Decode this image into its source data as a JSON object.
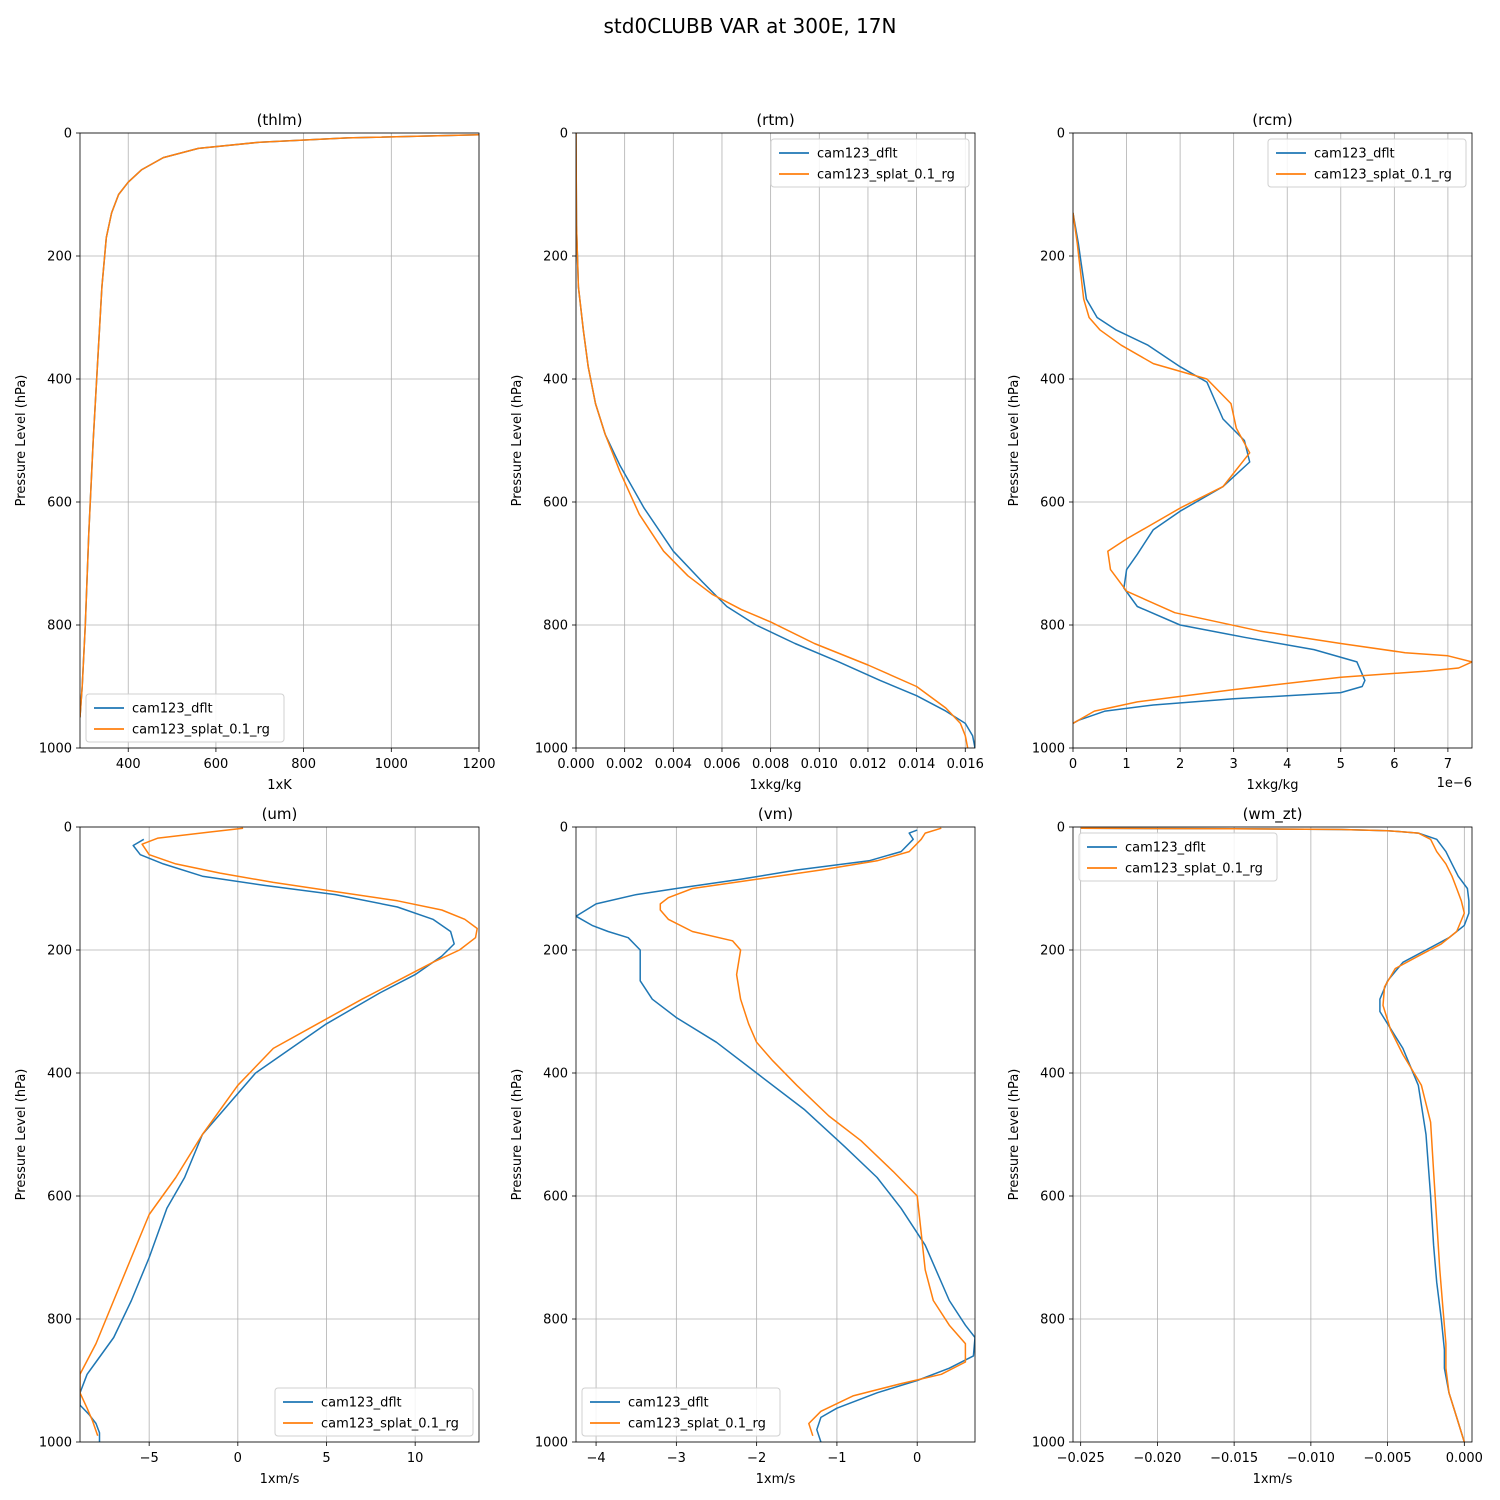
{
  "figure": {
    "title": "std0CLUBB VAR at 300E, 17N",
    "colors": {
      "cam123_dflt": "#1f77b4",
      "cam123_splat_0.1_rg": "#ff7f0e",
      "grid": "#b0b0b0"
    }
  },
  "chart_data": [
    {
      "type": "line",
      "title": "(thlm)",
      "xlabel": "1xK",
      "ylabel": "Pressure Level (hPa)",
      "xlim": [
        290,
        1200
      ],
      "ylim": [
        1000,
        0
      ],
      "xticks": [
        400,
        600,
        800,
        1000,
        1200
      ],
      "xtick_labels": [
        "400",
        "600",
        "800",
        "1000",
        "1200"
      ],
      "yticks": [
        0,
        200,
        400,
        600,
        800,
        1000
      ],
      "ytick_labels": [
        "0",
        "200",
        "400",
        "600",
        "800",
        "1000"
      ],
      "grid": true,
      "legend": "lower-left",
      "series": [
        {
          "name": "cam123_dflt",
          "x": [
            1200,
            900,
            700,
            560,
            480,
            430,
            400,
            378,
            362,
            350,
            340,
            332,
            320,
            310,
            302,
            295,
            290
          ],
          "y": [
            3,
            8,
            15,
            25,
            40,
            60,
            80,
            100,
            130,
            170,
            250,
            350,
            500,
            650,
            800,
            900,
            950
          ]
        },
        {
          "name": "cam123_splat_0.1_rg",
          "x": [
            1200,
            900,
            700,
            560,
            480,
            430,
            400,
            378,
            362,
            350,
            340,
            332,
            320,
            310,
            302,
            295,
            290
          ],
          "y": [
            3,
            8,
            15,
            25,
            40,
            60,
            80,
            100,
            130,
            170,
            250,
            350,
            500,
            650,
            800,
            900,
            950
          ]
        }
      ]
    },
    {
      "type": "line",
      "title": "(rtm)",
      "xlabel": "1xkg/kg",
      "ylabel": "Pressure Level (hPa)",
      "xlim": [
        0,
        0.0164
      ],
      "ylim": [
        1000,
        0
      ],
      "xticks": [
        0,
        0.002,
        0.004,
        0.006,
        0.008,
        0.01,
        0.012,
        0.014,
        0.016
      ],
      "xtick_labels": [
        "0.000",
        "0.002",
        "0.004",
        "0.006",
        "0.008",
        "0.010",
        "0.012",
        "0.014",
        "0.016"
      ],
      "yticks": [
        0,
        200,
        400,
        600,
        800,
        1000
      ],
      "ytick_labels": [
        "0",
        "200",
        "400",
        "600",
        "800",
        "1000"
      ],
      "grid": true,
      "legend": "upper-right",
      "series": [
        {
          "name": "cam123_dflt",
          "x": [
            0,
            2e-05,
            0.0001,
            0.0003,
            0.0005,
            0.0008,
            0.0012,
            0.0018,
            0.0028,
            0.004,
            0.0052,
            0.0062,
            0.0074,
            0.009,
            0.0108,
            0.0125,
            0.014,
            0.0152,
            0.016,
            0.0163,
            0.0164
          ],
          "y": [
            0,
            150,
            250,
            320,
            380,
            440,
            490,
            540,
            610,
            680,
            730,
            770,
            800,
            830,
            860,
            890,
            915,
            940,
            960,
            980,
            1000
          ]
        },
        {
          "name": "cam123_splat_0.1_rg",
          "x": [
            0,
            2e-05,
            0.0001,
            0.0003,
            0.0005,
            0.0008,
            0.0012,
            0.0018,
            0.0026,
            0.0036,
            0.0046,
            0.0056,
            0.0068,
            0.008,
            0.0098,
            0.012,
            0.014,
            0.0152,
            0.0158,
            0.016,
            0.0161
          ],
          "y": [
            0,
            150,
            250,
            320,
            380,
            440,
            490,
            550,
            620,
            680,
            720,
            750,
            775,
            795,
            830,
            865,
            900,
            935,
            960,
            980,
            1000
          ]
        }
      ]
    },
    {
      "type": "line",
      "title": "(rcm)",
      "xlabel": "1xkg/kg",
      "ylabel": "Pressure Level (hPa)",
      "xlim": [
        0,
        7.45e-06
      ],
      "ylim": [
        1000,
        0
      ],
      "xticks": [
        0,
        1e-06,
        2e-06,
        3e-06,
        4e-06,
        5e-06,
        6e-06,
        7e-06
      ],
      "xtick_labels": [
        "0",
        "1",
        "2",
        "3",
        "4",
        "5",
        "6",
        "7"
      ],
      "x_offset_label": "1e−6",
      "yticks": [
        0,
        200,
        400,
        600,
        800,
        1000
      ],
      "ytick_labels": [
        "0",
        "200",
        "400",
        "600",
        "800",
        "1000"
      ],
      "grid": true,
      "legend": "upper-right",
      "series": [
        {
          "name": "cam123_dflt",
          "x": [
            0,
            1e-07,
            1.5e-07,
            2.5e-07,
            4.5e-07,
            8e-07,
            1.4e-06,
            2e-06,
            2.5e-06,
            2.65e-06,
            2.8e-06,
            3.2e-06,
            3.3e-06,
            2.8e-06,
            2e-06,
            1.5e-06,
            1.2e-06,
            1e-06,
            9.5e-07,
            1.2e-06,
            2e-06,
            3.2e-06,
            4.5e-06,
            5.3e-06,
            5.45e-06,
            5.4e-06,
            5e-06,
            3e-06,
            1.5e-06,
            6e-07,
            1e-07,
            0
          ],
          "y": [
            130,
            180,
            210,
            270,
            300,
            320,
            345,
            380,
            405,
            435,
            465,
            500,
            535,
            575,
            615,
            645,
            685,
            710,
            740,
            770,
            800,
            820,
            840,
            860,
            890,
            900,
            910,
            920,
            930,
            940,
            955,
            960
          ]
        },
        {
          "name": "cam123_splat_0.1_rg",
          "x": [
            0,
            8e-08,
            1.2e-07,
            2e-07,
            3e-07,
            5e-07,
            9e-07,
            1.5e-06,
            2.5e-06,
            2.95e-06,
            3.05e-06,
            3.3e-06,
            2.8e-06,
            2e-06,
            1.4e-06,
            1e-06,
            6.5e-07,
            7e-07,
            1e-06,
            1.9e-06,
            3.5e-06,
            5e-06,
            6.2e-06,
            7e-06,
            7.45e-06,
            7.2e-06,
            6.6e-06,
            5e-06,
            3e-06,
            1.2e-06,
            4e-07,
            0
          ],
          "y": [
            130,
            180,
            210,
            270,
            300,
            320,
            345,
            375,
            400,
            440,
            480,
            520,
            575,
            610,
            640,
            660,
            680,
            710,
            745,
            780,
            810,
            830,
            845,
            850,
            860,
            870,
            875,
            885,
            905,
            925,
            940,
            960
          ]
        }
      ]
    },
    {
      "type": "line",
      "title": "(um)",
      "xlabel": "1xm/s",
      "ylabel": "Pressure Level (hPa)",
      "xlim": [
        -8.9,
        13.6
      ],
      "ylim": [
        1000,
        0
      ],
      "xticks": [
        -5,
        0,
        5,
        10
      ],
      "xtick_labels": [
        "−5",
        "0",
        "5",
        "10"
      ],
      "yticks": [
        0,
        200,
        400,
        600,
        800,
        1000
      ],
      "ytick_labels": [
        "0",
        "200",
        "400",
        "600",
        "800",
        "1000"
      ],
      "grid": true,
      "legend": "lower-right",
      "series": [
        {
          "name": "cam123_dflt",
          "x": [
            -5.3,
            -5.9,
            -5.5,
            -4.2,
            -2.0,
            1.5,
            5.5,
            9.0,
            11.0,
            12.0,
            12.2,
            11.5,
            10.0,
            8.0,
            5.0,
            3.0,
            1.0,
            -0.5,
            -2.0,
            -3.0,
            -4.0,
            -5.0,
            -6.0,
            -7.0,
            -8.0,
            -8.5,
            -8.9,
            -8.9,
            -8.4,
            -8.0,
            -7.8,
            -7.8
          ],
          "y": [
            20,
            30,
            45,
            60,
            80,
            95,
            110,
            130,
            150,
            170,
            190,
            210,
            240,
            270,
            320,
            360,
            400,
            450,
            500,
            570,
            620,
            700,
            770,
            830,
            870,
            890,
            920,
            940,
            955,
            970,
            985,
            1000
          ]
        },
        {
          "name": "cam123_splat_0.1_rg",
          "x": [
            0.3,
            -1.5,
            -4.5,
            -5.4,
            -5.0,
            -3.5,
            -1.0,
            2.0,
            5.5,
            9.0,
            11.5,
            12.8,
            13.5,
            13.4,
            12.5,
            11.0,
            9.0,
            7.0,
            4.5,
            2.0,
            0,
            -2.0,
            -3.5,
            -5.0,
            -6.0,
            -7.0,
            -8.0,
            -8.9,
            -8.9,
            -8.5,
            -8.2,
            -7.9
          ],
          "y": [
            2,
            8,
            18,
            28,
            45,
            60,
            75,
            90,
            105,
            120,
            135,
            150,
            165,
            180,
            200,
            220,
            250,
            280,
            320,
            360,
            420,
            500,
            570,
            630,
            700,
            770,
            840,
            890,
            920,
            945,
            965,
            990
          ]
        }
      ]
    },
    {
      "type": "line",
      "title": "(vm)",
      "xlabel": "1xm/s",
      "ylabel": "Pressure Level (hPa)",
      "xlim": [
        -4.25,
        0.72
      ],
      "ylim": [
        1000,
        0
      ],
      "xticks": [
        -4,
        -3,
        -2,
        -1,
        0
      ],
      "xtick_labels": [
        "−4",
        "−3",
        "−2",
        "−1",
        "0"
      ],
      "yticks": [
        0,
        200,
        400,
        600,
        800,
        1000
      ],
      "ytick_labels": [
        "0",
        "200",
        "400",
        "600",
        "800",
        "1000"
      ],
      "grid": true,
      "legend": "lower-left",
      "series": [
        {
          "name": "cam123_dflt",
          "x": [
            0,
            -0.1,
            -0.05,
            -0.2,
            -0.6,
            -1.5,
            -2.2,
            -3.0,
            -3.5,
            -4.0,
            -4.25,
            -4.05,
            -3.85,
            -3.6,
            -3.45,
            -3.45,
            -3.45,
            -3.3,
            -3.0,
            -2.5,
            -2.0,
            -1.4,
            -0.9,
            -0.5,
            -0.2,
            0.1,
            0.4,
            0.6,
            0.72,
            0.7,
            0.4,
            0,
            -0.5,
            -1.0,
            -1.2,
            -1.25,
            -1.2
          ],
          "y": [
            5,
            10,
            20,
            40,
            55,
            70,
            85,
            100,
            110,
            125,
            145,
            160,
            170,
            180,
            200,
            220,
            250,
            280,
            310,
            350,
            400,
            460,
            520,
            570,
            620,
            680,
            770,
            810,
            830,
            860,
            880,
            900,
            920,
            945,
            960,
            980,
            1000
          ]
        },
        {
          "name": "cam123_splat_0.1_rg",
          "x": [
            0.3,
            0.1,
            0.05,
            -0.1,
            -0.5,
            -1.2,
            -2.0,
            -2.8,
            -3.1,
            -3.2,
            -3.2,
            -3.1,
            -2.8,
            -2.3,
            -2.2,
            -2.25,
            -2.2,
            -2.1,
            -2.0,
            -1.8,
            -1.5,
            -1.1,
            -0.7,
            -0.3,
            0.0,
            0.05,
            0.1,
            0.2,
            0.4,
            0.6,
            0.6,
            0.3,
            -0.2,
            -0.8,
            -1.2,
            -1.35,
            -1.3
          ],
          "y": [
            2,
            10,
            20,
            40,
            55,
            70,
            85,
            100,
            115,
            125,
            135,
            150,
            170,
            185,
            200,
            240,
            280,
            320,
            350,
            380,
            420,
            470,
            510,
            560,
            600,
            660,
            720,
            770,
            810,
            840,
            870,
            890,
            905,
            925,
            950,
            970,
            990
          ]
        }
      ]
    },
    {
      "type": "line",
      "title": "(wm_zt)",
      "xlabel": "1xm/s",
      "ylabel": "Pressure Level (hPa)",
      "xlim": [
        -0.0255,
        0.0005
      ],
      "ylim": [
        1000,
        0
      ],
      "xticks": [
        -0.025,
        -0.02,
        -0.015,
        -0.01,
        -0.005,
        0
      ],
      "xtick_labels": [
        "−0.025",
        "−0.020",
        "−0.015",
        "−0.010",
        "−0.005",
        "0.000"
      ],
      "yticks": [
        0,
        200,
        400,
        600,
        800,
        1000
      ],
      "ytick_labels": [
        "0",
        "200",
        "400",
        "600",
        "800",
        "1000"
      ],
      "grid": true,
      "legend": "upper-left",
      "series": [
        {
          "name": "cam123_dflt",
          "x": [
            -0.025,
            -0.015,
            -0.008,
            -0.005,
            -0.003,
            -0.0018,
            -0.0012,
            -0.0008,
            -0.0004,
            0.0002,
            0.0003,
            0.0003,
            0.0,
            -0.001,
            -0.0025,
            -0.004,
            -0.005,
            -0.0055,
            -0.0055,
            -0.005,
            -0.004,
            -0.003,
            -0.0025,
            -0.0022,
            -0.002,
            -0.0018,
            -0.0015,
            -0.0013,
            -0.0013,
            -0.001,
            -0.0005,
            0.0
          ],
          "y": [
            2,
            3,
            4,
            6,
            10,
            20,
            40,
            60,
            80,
            100,
            120,
            140,
            160,
            180,
            200,
            220,
            250,
            280,
            300,
            320,
            360,
            420,
            500,
            600,
            680,
            740,
            800,
            850,
            880,
            920,
            960,
            1000
          ]
        },
        {
          "name": "cam123_splat_0.1_rg",
          "x": [
            -0.025,
            -0.015,
            -0.008,
            -0.005,
            -0.003,
            -0.0022,
            -0.0018,
            -0.0012,
            -0.0008,
            -0.0005,
            -0.0002,
            0.0,
            -0.0005,
            -0.0015,
            -0.003,
            -0.0045,
            -0.0052,
            -0.0053,
            -0.0048,
            -0.004,
            -0.0028,
            -0.0022,
            -0.002,
            -0.0018,
            -0.0016,
            -0.0014,
            -0.0012,
            -0.0012,
            -0.001,
            -0.0005,
            0.0
          ],
          "y": [
            2,
            3,
            4,
            6,
            10,
            20,
            40,
            60,
            80,
            100,
            120,
            140,
            170,
            190,
            210,
            230,
            260,
            290,
            330,
            370,
            420,
            480,
            560,
            640,
            720,
            780,
            840,
            880,
            920,
            960,
            1000
          ]
        }
      ]
    }
  ]
}
